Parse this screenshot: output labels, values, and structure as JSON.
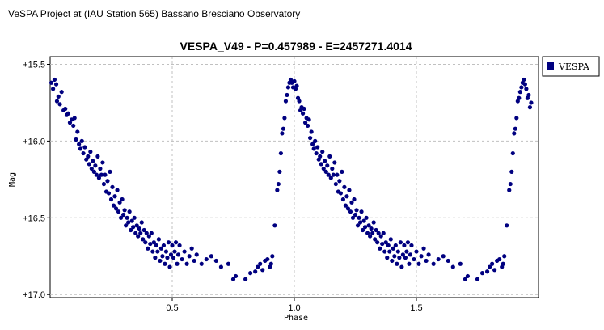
{
  "header": {
    "text": "VeSPA Project at (IAU Station 565) Bassano Bresciano Observatory"
  },
  "colors": {
    "series": "#000080",
    "grid": "#c0c0c0",
    "frame": "#000000",
    "background": "#ffffff"
  },
  "chart_data": {
    "type": "scatter",
    "title": "VESPA_V49  -  P=0.457989  -  E=2457271.4014",
    "xlabel": "Phase",
    "ylabel": "Mag",
    "xlim": [
      0.0,
      2.0
    ],
    "ylim": [
      15.45,
      17.02
    ],
    "y_inverted": true,
    "grid": true,
    "legend_position": "right",
    "x_ticks": [
      {
        "value": 0.5,
        "label": "0.5"
      },
      {
        "value": 1.0,
        "label": "1.0"
      },
      {
        "value": 1.5,
        "label": "1.5"
      }
    ],
    "y_ticks": [
      {
        "value": 15.5,
        "label": "+15.5"
      },
      {
        "value": 16.0,
        "label": "+16.0"
      },
      {
        "value": 16.5,
        "label": "+16.5"
      },
      {
        "value": 17.0,
        "label": "+17.0"
      }
    ],
    "series": [
      {
        "name": "VESPA",
        "color": "#000080",
        "points": [
          [
            0.005,
            15.62
          ],
          [
            0.012,
            15.66
          ],
          [
            0.018,
            15.6
          ],
          [
            0.025,
            15.63
          ],
          [
            0.028,
            15.74
          ],
          [
            0.034,
            15.71
          ],
          [
            0.04,
            15.76
          ],
          [
            0.047,
            15.68
          ],
          [
            0.055,
            15.8
          ],
          [
            0.062,
            15.79
          ],
          [
            0.068,
            15.83
          ],
          [
            0.074,
            15.82
          ],
          [
            0.081,
            15.88
          ],
          [
            0.088,
            15.86
          ],
          [
            0.095,
            15.9
          ],
          [
            0.1,
            15.85
          ],
          [
            0.106,
            15.99
          ],
          [
            0.112,
            15.94
          ],
          [
            0.118,
            16.02
          ],
          [
            0.124,
            16.05
          ],
          [
            0.13,
            16.0
          ],
          [
            0.136,
            16.08
          ],
          [
            0.142,
            16.04
          ],
          [
            0.148,
            16.12
          ],
          [
            0.155,
            16.1
          ],
          [
            0.16,
            16.15
          ],
          [
            0.165,
            16.07
          ],
          [
            0.17,
            16.18
          ],
          [
            0.175,
            16.13
          ],
          [
            0.18,
            16.2
          ],
          [
            0.185,
            16.16
          ],
          [
            0.19,
            16.22
          ],
          [
            0.195,
            16.1
          ],
          [
            0.2,
            16.24
          ],
          [
            0.205,
            16.18
          ],
          [
            0.21,
            16.22
          ],
          [
            0.215,
            16.14
          ],
          [
            0.22,
            16.28
          ],
          [
            0.225,
            16.22
          ],
          [
            0.23,
            16.33
          ],
          [
            0.235,
            16.26
          ],
          [
            0.24,
            16.34
          ],
          [
            0.245,
            16.2
          ],
          [
            0.25,
            16.38
          ],
          [
            0.255,
            16.3
          ],
          [
            0.26,
            16.42
          ],
          [
            0.265,
            16.36
          ],
          [
            0.27,
            16.44
          ],
          [
            0.275,
            16.32
          ],
          [
            0.28,
            16.46
          ],
          [
            0.285,
            16.4
          ],
          [
            0.29,
            16.5
          ],
          [
            0.295,
            16.38
          ],
          [
            0.3,
            16.48
          ],
          [
            0.305,
            16.45
          ],
          [
            0.31,
            16.55
          ],
          [
            0.315,
            16.5
          ],
          [
            0.32,
            16.53
          ],
          [
            0.325,
            16.46
          ],
          [
            0.33,
            16.58
          ],
          [
            0.335,
            16.52
          ],
          [
            0.34,
            16.56
          ],
          [
            0.345,
            16.5
          ],
          [
            0.35,
            16.6
          ],
          [
            0.355,
            16.55
          ],
          [
            0.36,
            16.62
          ],
          [
            0.365,
            16.57
          ],
          [
            0.37,
            16.6
          ],
          [
            0.375,
            16.53
          ],
          [
            0.38,
            16.64
          ],
          [
            0.385,
            16.58
          ],
          [
            0.39,
            16.66
          ],
          [
            0.395,
            16.6
          ],
          [
            0.4,
            16.7
          ],
          [
            0.405,
            16.62
          ],
          [
            0.41,
            16.67
          ],
          [
            0.415,
            16.6
          ],
          [
            0.42,
            16.72
          ],
          [
            0.425,
            16.66
          ],
          [
            0.43,
            16.76
          ],
          [
            0.435,
            16.68
          ],
          [
            0.44,
            16.72
          ],
          [
            0.445,
            16.64
          ],
          [
            0.45,
            16.78
          ],
          [
            0.455,
            16.7
          ],
          [
            0.46,
            16.75
          ],
          [
            0.465,
            16.68
          ],
          [
            0.47,
            16.8
          ],
          [
            0.475,
            16.72
          ],
          [
            0.48,
            16.76
          ],
          [
            0.485,
            16.66
          ],
          [
            0.49,
            16.82
          ],
          [
            0.495,
            16.74
          ],
          [
            0.5,
            16.68
          ],
          [
            0.505,
            16.76
          ],
          [
            0.51,
            16.72
          ],
          [
            0.515,
            16.66
          ],
          [
            0.52,
            16.8
          ],
          [
            0.525,
            16.74
          ],
          [
            0.53,
            16.68
          ],
          [
            0.54,
            16.77
          ],
          [
            0.55,
            16.72
          ],
          [
            0.56,
            16.8
          ],
          [
            0.57,
            16.75
          ],
          [
            0.58,
            16.7
          ],
          [
            0.59,
            16.78
          ],
          [
            0.6,
            16.74
          ],
          [
            0.62,
            16.8
          ],
          [
            0.64,
            16.77
          ],
          [
            0.66,
            16.75
          ],
          [
            0.68,
            16.78
          ],
          [
            0.7,
            16.82
          ],
          [
            0.73,
            16.8
          ],
          [
            0.75,
            16.9
          ],
          [
            0.76,
            16.88
          ],
          [
            0.8,
            16.9
          ],
          [
            0.82,
            16.86
          ],
          [
            0.84,
            16.85
          ],
          [
            0.85,
            16.82
          ],
          [
            0.86,
            16.8
          ],
          [
            0.87,
            16.84
          ],
          [
            0.88,
            16.78
          ],
          [
            0.89,
            16.77
          ],
          [
            0.9,
            16.82
          ],
          [
            0.905,
            16.8
          ],
          [
            0.91,
            16.75
          ],
          [
            0.92,
            16.55
          ],
          [
            0.93,
            16.32
          ],
          [
            0.935,
            16.28
          ],
          [
            0.94,
            16.2
          ],
          [
            0.945,
            16.08
          ],
          [
            0.95,
            15.95
          ],
          [
            0.955,
            15.92
          ],
          [
            0.96,
            15.85
          ],
          [
            0.965,
            15.74
          ],
          [
            0.97,
            15.7
          ],
          [
            0.975,
            15.65
          ],
          [
            0.98,
            15.62
          ],
          [
            0.985,
            15.6
          ],
          [
            0.99,
            15.62
          ],
          [
            0.995,
            15.65
          ],
          [
            1.0,
            15.61
          ],
          [
            1.005,
            15.66
          ],
          [
            1.01,
            15.64
          ],
          [
            1.015,
            15.72
          ],
          [
            1.02,
            15.74
          ],
          [
            1.025,
            15.8
          ],
          [
            1.03,
            15.78
          ],
          [
            1.035,
            15.82
          ],
          [
            1.04,
            15.79
          ],
          [
            1.045,
            15.88
          ],
          [
            1.05,
            15.85
          ],
          [
            1.055,
            15.9
          ],
          [
            1.06,
            15.86
          ],
          [
            1.065,
            15.98
          ],
          [
            1.07,
            15.94
          ],
          [
            1.075,
            16.02
          ],
          [
            1.08,
            16.05
          ],
          [
            1.085,
            16.0
          ],
          [
            1.09,
            16.08
          ],
          [
            1.095,
            16.04
          ],
          [
            1.1,
            16.12
          ],
          [
            1.105,
            16.1
          ],
          [
            1.11,
            16.15
          ],
          [
            1.115,
            16.07
          ],
          [
            1.12,
            16.18
          ],
          [
            1.125,
            16.13
          ],
          [
            1.13,
            16.2
          ],
          [
            1.135,
            16.16
          ],
          [
            1.14,
            16.22
          ],
          [
            1.145,
            16.1
          ],
          [
            1.15,
            16.24
          ],
          [
            1.155,
            16.18
          ],
          [
            1.16,
            16.22
          ],
          [
            1.165,
            16.14
          ],
          [
            1.17,
            16.28
          ],
          [
            1.175,
            16.22
          ],
          [
            1.18,
            16.33
          ],
          [
            1.185,
            16.26
          ],
          [
            1.19,
            16.34
          ],
          [
            1.195,
            16.2
          ],
          [
            1.2,
            16.38
          ],
          [
            1.205,
            16.3
          ],
          [
            1.21,
            16.42
          ],
          [
            1.215,
            16.36
          ],
          [
            1.22,
            16.44
          ],
          [
            1.225,
            16.32
          ],
          [
            1.23,
            16.46
          ],
          [
            1.235,
            16.4
          ],
          [
            1.24,
            16.5
          ],
          [
            1.245,
            16.38
          ],
          [
            1.25,
            16.48
          ],
          [
            1.255,
            16.45
          ],
          [
            1.26,
            16.55
          ],
          [
            1.265,
            16.5
          ],
          [
            1.27,
            16.53
          ],
          [
            1.275,
            16.46
          ],
          [
            1.28,
            16.58
          ],
          [
            1.285,
            16.52
          ],
          [
            1.29,
            16.56
          ],
          [
            1.295,
            16.5
          ],
          [
            1.3,
            16.6
          ],
          [
            1.305,
            16.55
          ],
          [
            1.31,
            16.62
          ],
          [
            1.315,
            16.57
          ],
          [
            1.32,
            16.6
          ],
          [
            1.325,
            16.53
          ],
          [
            1.33,
            16.64
          ],
          [
            1.335,
            16.58
          ],
          [
            1.34,
            16.66
          ],
          [
            1.345,
            16.6
          ],
          [
            1.35,
            16.7
          ],
          [
            1.355,
            16.62
          ],
          [
            1.36,
            16.67
          ],
          [
            1.365,
            16.6
          ],
          [
            1.37,
            16.72
          ],
          [
            1.375,
            16.66
          ],
          [
            1.38,
            16.76
          ],
          [
            1.385,
            16.68
          ],
          [
            1.39,
            16.72
          ],
          [
            1.395,
            16.64
          ],
          [
            1.4,
            16.78
          ],
          [
            1.405,
            16.7
          ],
          [
            1.41,
            16.75
          ],
          [
            1.415,
            16.68
          ],
          [
            1.42,
            16.8
          ],
          [
            1.425,
            16.72
          ],
          [
            1.43,
            16.76
          ],
          [
            1.435,
            16.66
          ],
          [
            1.44,
            16.82
          ],
          [
            1.445,
            16.74
          ],
          [
            1.45,
            16.68
          ],
          [
            1.455,
            16.76
          ],
          [
            1.46,
            16.72
          ],
          [
            1.465,
            16.66
          ],
          [
            1.47,
            16.8
          ],
          [
            1.475,
            16.74
          ],
          [
            1.48,
            16.68
          ],
          [
            1.49,
            16.77
          ],
          [
            1.5,
            16.72
          ],
          [
            1.51,
            16.8
          ],
          [
            1.52,
            16.75
          ],
          [
            1.53,
            16.7
          ],
          [
            1.54,
            16.78
          ],
          [
            1.55,
            16.74
          ],
          [
            1.57,
            16.8
          ],
          [
            1.59,
            16.77
          ],
          [
            1.61,
            16.75
          ],
          [
            1.63,
            16.78
          ],
          [
            1.65,
            16.82
          ],
          [
            1.68,
            16.8
          ],
          [
            1.7,
            16.9
          ],
          [
            1.71,
            16.88
          ],
          [
            1.75,
            16.9
          ],
          [
            1.77,
            16.86
          ],
          [
            1.79,
            16.85
          ],
          [
            1.8,
            16.82
          ],
          [
            1.81,
            16.8
          ],
          [
            1.82,
            16.84
          ],
          [
            1.83,
            16.78
          ],
          [
            1.84,
            16.77
          ],
          [
            1.85,
            16.82
          ],
          [
            1.855,
            16.8
          ],
          [
            1.86,
            16.75
          ],
          [
            1.87,
            16.55
          ],
          [
            1.88,
            16.32
          ],
          [
            1.885,
            16.28
          ],
          [
            1.89,
            16.2
          ],
          [
            1.895,
            16.08
          ],
          [
            1.9,
            15.95
          ],
          [
            1.905,
            15.92
          ],
          [
            1.91,
            15.85
          ],
          [
            1.915,
            15.74
          ],
          [
            1.92,
            15.72
          ],
          [
            1.925,
            15.68
          ],
          [
            1.93,
            15.65
          ],
          [
            1.935,
            15.62
          ],
          [
            1.94,
            15.6
          ],
          [
            1.945,
            15.63
          ],
          [
            1.95,
            15.66
          ],
          [
            1.955,
            15.72
          ],
          [
            1.96,
            15.7
          ],
          [
            1.965,
            15.78
          ],
          [
            1.97,
            15.75
          ]
        ]
      }
    ]
  }
}
